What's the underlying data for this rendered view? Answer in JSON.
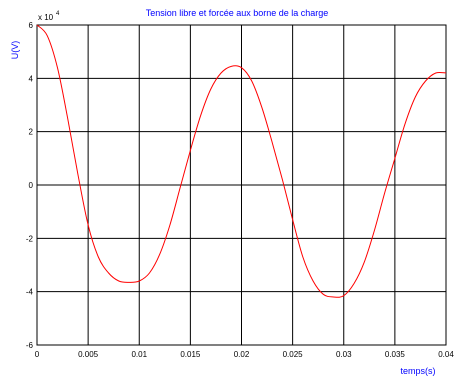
{
  "chart_data": {
    "type": "line",
    "title": "Tension libre et forcée aux borne de la charge",
    "xlabel": "temps(s)",
    "ylabel": "U(V)",
    "y_scale_note": "x 10^4",
    "xlim": [
      0,
      0.04
    ],
    "ylim": [
      -6,
      6
    ],
    "x_ticks": [
      "0",
      "0.005",
      "0.01",
      "0.015",
      "0.02",
      "0.025",
      "0.03",
      "0.035",
      "0.04"
    ],
    "y_ticks": [
      "-6",
      "-4",
      "-2",
      "0",
      "2",
      "4",
      "6"
    ],
    "grid": true,
    "colors": {
      "line": "#ff0000",
      "title": "#0000ff",
      "axis": "#000000",
      "grid": "#000000"
    },
    "series": [
      {
        "x": [
          0,
          0.001,
          0.002,
          0.003,
          0.004,
          0.005,
          0.006,
          0.007,
          0.008,
          0.009,
          0.01,
          0.011,
          0.012,
          0.013,
          0.014,
          0.015,
          0.016,
          0.017,
          0.018,
          0.019,
          0.02,
          0.021,
          0.022,
          0.023,
          0.024,
          0.025,
          0.026,
          0.027,
          0.028,
          0.029,
          0.03,
          0.031,
          0.032,
          0.033,
          0.034,
          0.035,
          0.036,
          0.037,
          0.038,
          0.039,
          0.04
        ],
        "values": [
          6.0,
          5.6,
          4.4,
          2.5,
          0.4,
          -1.5,
          -2.7,
          -3.3,
          -3.6,
          -3.65,
          -3.6,
          -3.3,
          -2.6,
          -1.5,
          -0.1,
          1.3,
          2.6,
          3.6,
          4.2,
          4.45,
          4.4,
          3.9,
          2.9,
          1.6,
          0.2,
          -1.3,
          -2.7,
          -3.6,
          -4.1,
          -4.2,
          -4.15,
          -3.7,
          -2.9,
          -1.7,
          -0.3,
          1.0,
          2.3,
          3.3,
          3.9,
          4.2,
          4.2
        ]
      }
    ]
  }
}
